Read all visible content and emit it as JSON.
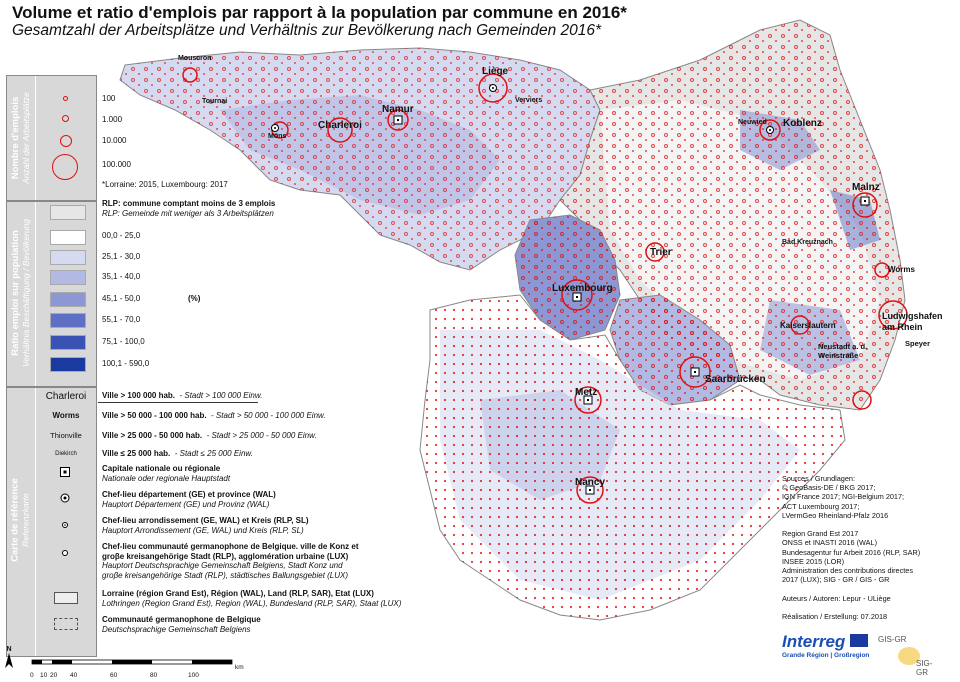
{
  "title": "Volume et ratio d'emplois par rapport à la population par commune en 2016*",
  "subtitle": "Gesamtzahl der Arbeitsplätze und Verhältnis zur Bevölkerung nach Gemeinden 2016*",
  "legend": {
    "jobs_section": {
      "label_fr": "Nombre d'emplois",
      "label_de": "Anzahl der Arbeitsplätze",
      "items": [
        "100",
        "1.000",
        "10.000",
        "100.000"
      ],
      "note": "*Lorraine: 2015, Luxembourg: 2017"
    },
    "ratio_section": {
      "label_fr": "Ratio emploi sur population",
      "label_de": "Verhältnis Beschäftigung / Bevölkerung",
      "rlp_fr": "RLP: commune comptant moins de 3 emplois",
      "rlp_de": "RLP: Gemeinde mit weniger als 3 Arbeitsplätzen",
      "classes": [
        "00,0 - 25,0",
        "25,1 - 30,0",
        "35,1 - 40,0",
        "45,1 - 50,0",
        "55,1 - 70,0",
        "75,1 - 100,0",
        "100,1 - 590,0"
      ],
      "unit": "(%)",
      "colors": [
        "#e6e6e6",
        "#ffffff",
        "#d6daf0",
        "#b2b9e3",
        "#8c97d4",
        "#5e6fc4",
        "#3a52b4",
        "#1a3aa0"
      ]
    },
    "ref_section": {
      "label_fr": "Carte de référence",
      "label_de": "Referenzkarte",
      "city_samples": [
        "Charleroi",
        "Worms",
        "Thionville",
        "Diekirch"
      ],
      "city_classes": [
        {
          "fr": "Ville > 100 000 hab.",
          "de": "- Stadt > 100 000 Einw."
        },
        {
          "fr": "Ville > 50 000 - 100 000 hab.",
          "de": "- Stadt > 50 000 - 100 000 Einw."
        },
        {
          "fr": "Ville > 25 000 - 50 000  hab.",
          "de": "- Stadt > 25 000 - 50 000 Einw."
        },
        {
          "fr": "Ville ≤ 25 000  hab.",
          "de": "- Stadt ≤ 25 000 Einw."
        }
      ],
      "capital_fr": "Capitale nationale ou régionale",
      "capital_de": "Nationale oder regionale Hauptstadt",
      "chef_dep_fr": "Chef-lieu département (GE) et province (WAL)",
      "chef_dep_de": "Hauptort Département (GE) und Provinz (WAL)",
      "chef_arr_fr": "Chef-lieu arrondissement (GE, WAL) et Kreis (RLP, SL)",
      "chef_arr_de": "Hauptort Arrondissement (GE, WAL) und Kreis (RLP, SL)",
      "chef_com_fr1": "Chef-lieu communauté germanophone de Belgique. ville de Konz et",
      "chef_com_fr2": "groβe kreisangehörige Stadt (RLP), agglomération urbaine (LUX)",
      "chef_com_de1": "Hauptort Deutschsprachige Gemeinschaft Belgiens, Stadt Konz und",
      "chef_com_de2": "groβe kreisangehörige Stadt (RLP), städtisches Ballungsgebiet (LUX)",
      "border_fr": "Lorraine (région Grand Est), Région (WAL), Land (RLP, SAR), Etat (LUX)",
      "border_de": "Lothringen (Region Grand Est), Region (WAL), Bundesland (RLP, SAR), Staat (LUX)",
      "comm_fr": "Communauté germanophone de Belgique",
      "comm_de": "Deutschsprachige Gemeinschaft Belgiens"
    }
  },
  "map": {
    "cities_large": [
      "Liège",
      "Namur",
      "Charleroi",
      "Koblenz",
      "Mainz",
      "Trier",
      "Luxembourg",
      "Worms",
      "Ludwigshafen am Rhein",
      "Kaiserslautern",
      "Saarbrücken",
      "Metz",
      "Nancy",
      "Neustadt a. d. Weinstraße",
      "Speyer",
      "Mons",
      "Mouscron",
      "Tournai",
      "Verviers",
      "Neuwied",
      "Bad Kreuznach"
    ],
    "accent_red": "#e01010",
    "accent_blue": "#3a52b4"
  },
  "sources_text": "Sources / Grundlagen:\n© GeoBasis-DE / BKG 2017;\nIGN France 2017; NGI-Belgium 2017;\nACT Luxembourg 2017;\nLVermGeo Rheinland-Pfalz 2016\n\nRegion Grand Est 2017\nONSS et INASTI 2016 (WAL)\nBundesagentur fur Arbeit 2016 (RLP, SAR)\nINSEE 2015 (LOR)\nAdministration des contributions directes\n2017 (LUX); SIG - GR / GIS - GR\n\nAuteurs / Autoren: Lepur - ULiège\n\nRéalisation / Erstellung: 07.2018",
  "logos": {
    "interreg": "Interreg",
    "interreg_sub": "Grande Région | Großregion",
    "gis": "GIS-GR",
    "sig": "SIG-GR"
  },
  "scale": {
    "ticks": [
      "0",
      "10",
      "20",
      "40",
      "60",
      "80",
      "100"
    ],
    "unit": "km"
  },
  "north": "N"
}
